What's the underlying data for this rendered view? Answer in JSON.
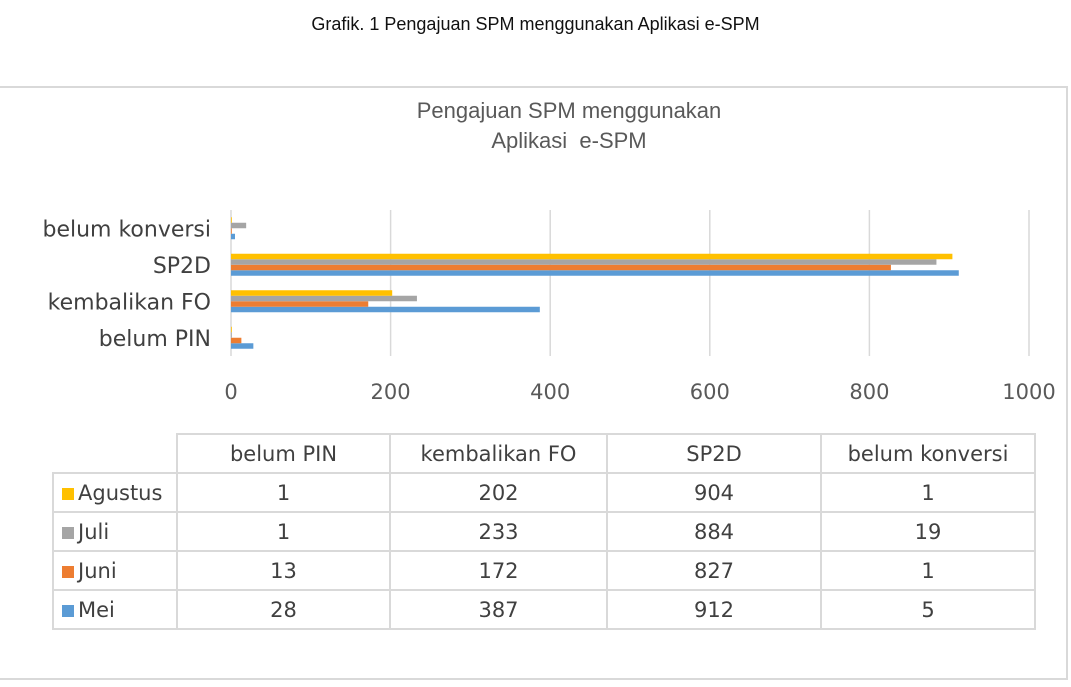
{
  "caption": "Grafik. 1 Pengajuan SPM menggunakan Aplikasi e-SPM",
  "chart_data": {
    "type": "bar",
    "orientation": "horizontal",
    "title": "Pengajuan SPM menggunakan\nAplikasi  e-SPM",
    "title_lines": [
      "Pengajuan SPM menggunakan",
      "Aplikasi  e-SPM"
    ],
    "categories": [
      "belum PIN",
      "kembalikan FO",
      "SP2D",
      "belum konversi"
    ],
    "series": [
      {
        "name": "Mei",
        "color": "#5b9bd5",
        "values": [
          28,
          387,
          912,
          5
        ]
      },
      {
        "name": "Juni",
        "color": "#ed7d31",
        "values": [
          13,
          172,
          827,
          1
        ]
      },
      {
        "name": "Juli",
        "color": "#a5a5a5",
        "values": [
          1,
          233,
          884,
          19
        ]
      },
      {
        "name": "Agustus",
        "color": "#ffc000",
        "values": [
          1,
          202,
          904,
          1
        ]
      }
    ],
    "xlim": [
      0,
      1000
    ],
    "x_ticks": [
      0,
      200,
      400,
      600,
      800,
      1000
    ],
    "grid": true,
    "legend": "data-table-below"
  }
}
